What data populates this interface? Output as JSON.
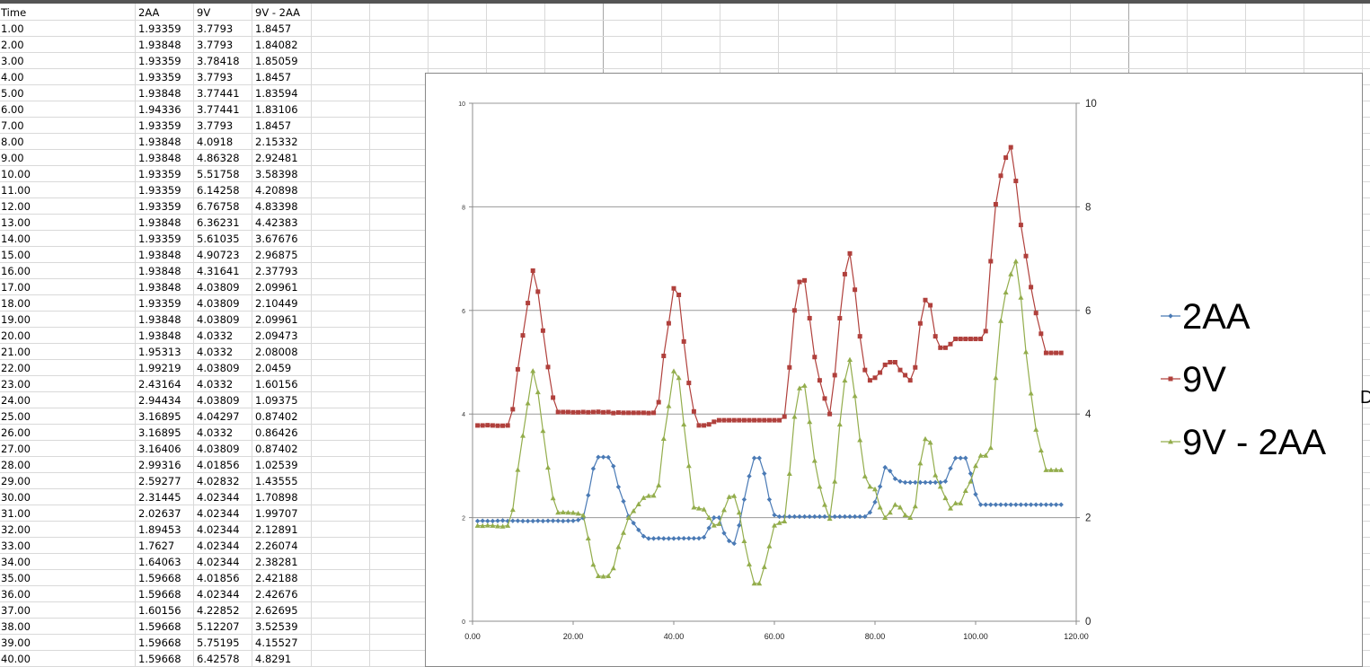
{
  "sheet": {
    "headers": [
      "Time",
      "2AA",
      "9V",
      "9V - 2AA"
    ],
    "rows": [
      [
        "1.00",
        "1.93359",
        "3.7793",
        "1.8457"
      ],
      [
        "2.00",
        "1.93848",
        "3.7793",
        "1.84082"
      ],
      [
        "3.00",
        "1.93359",
        "3.78418",
        "1.85059"
      ],
      [
        "4.00",
        "1.93359",
        "3.7793",
        "1.8457"
      ],
      [
        "5.00",
        "1.93848",
        "3.77441",
        "1.83594"
      ],
      [
        "6.00",
        "1.94336",
        "3.77441",
        "1.83106"
      ],
      [
        "7.00",
        "1.93359",
        "3.7793",
        "1.8457"
      ],
      [
        "8.00",
        "1.93848",
        "4.0918",
        "2.15332"
      ],
      [
        "9.00",
        "1.93848",
        "4.86328",
        "2.92481"
      ],
      [
        "10.00",
        "1.93359",
        "5.51758",
        "3.58398"
      ],
      [
        "11.00",
        "1.93359",
        "6.14258",
        "4.20898"
      ],
      [
        "12.00",
        "1.93359",
        "6.76758",
        "4.83398"
      ],
      [
        "13.00",
        "1.93848",
        "6.36231",
        "4.42383"
      ],
      [
        "14.00",
        "1.93359",
        "5.61035",
        "3.67676"
      ],
      [
        "15.00",
        "1.93848",
        "4.90723",
        "2.96875"
      ],
      [
        "16.00",
        "1.93848",
        "4.31641",
        "2.37793"
      ],
      [
        "17.00",
        "1.93848",
        "4.03809",
        "2.09961"
      ],
      [
        "18.00",
        "1.93359",
        "4.03809",
        "2.10449"
      ],
      [
        "19.00",
        "1.93848",
        "4.03809",
        "2.09961"
      ],
      [
        "20.00",
        "1.93848",
        "4.0332",
        "2.09473"
      ],
      [
        "21.00",
        "1.95313",
        "4.0332",
        "2.08008"
      ],
      [
        "22.00",
        "1.99219",
        "4.03809",
        "2.0459"
      ],
      [
        "23.00",
        "2.43164",
        "4.0332",
        "1.60156"
      ],
      [
        "24.00",
        "2.94434",
        "4.03809",
        "1.09375"
      ],
      [
        "25.00",
        "3.16895",
        "4.04297",
        "0.87402"
      ],
      [
        "26.00",
        "3.16895",
        "4.0332",
        "0.86426"
      ],
      [
        "27.00",
        "3.16406",
        "4.03809",
        "0.87402"
      ],
      [
        "28.00",
        "2.99316",
        "4.01856",
        "1.02539"
      ],
      [
        "29.00",
        "2.59277",
        "4.02832",
        "1.43555"
      ],
      [
        "30.00",
        "2.31445",
        "4.02344",
        "1.70898"
      ],
      [
        "31.00",
        "2.02637",
        "4.02344",
        "1.99707"
      ],
      [
        "32.00",
        "1.89453",
        "4.02344",
        "2.12891"
      ],
      [
        "33.00",
        "1.7627",
        "4.02344",
        "2.26074"
      ],
      [
        "34.00",
        "1.64063",
        "4.02344",
        "2.38281"
      ],
      [
        "35.00",
        "1.59668",
        "4.01856",
        "2.42188"
      ],
      [
        "36.00",
        "1.59668",
        "4.02344",
        "2.42676"
      ],
      [
        "37.00",
        "1.60156",
        "4.22852",
        "2.62695"
      ],
      [
        "38.00",
        "1.59668",
        "5.12207",
        "3.52539"
      ],
      [
        "39.00",
        "1.59668",
        "5.75195",
        "4.15527"
      ],
      [
        "40.00",
        "1.59668",
        "6.42578",
        "4.8291"
      ]
    ]
  },
  "stray_glyph": "D",
  "chart_data": {
    "type": "line",
    "x": [
      1,
      2,
      3,
      4,
      5,
      6,
      7,
      8,
      9,
      10,
      11,
      12,
      13,
      14,
      15,
      16,
      17,
      18,
      19,
      20,
      21,
      22,
      23,
      24,
      25,
      26,
      27,
      28,
      29,
      30,
      31,
      32,
      33,
      34,
      35,
      36,
      37,
      38,
      39,
      40,
      41,
      42,
      43,
      44,
      45,
      46,
      47,
      48,
      49,
      50,
      51,
      52,
      53,
      54,
      55,
      56,
      57,
      58,
      59,
      60,
      61,
      62,
      63,
      64,
      65,
      66,
      67,
      68,
      69,
      70,
      71,
      72,
      73,
      74,
      75,
      76,
      77,
      78,
      79,
      80,
      81,
      82,
      83,
      84,
      85,
      86,
      87,
      88,
      89,
      90,
      91,
      92,
      93,
      94,
      95,
      96,
      97,
      98,
      99,
      100,
      101,
      102,
      103,
      104,
      105,
      106,
      107,
      108,
      109,
      110,
      111,
      112,
      113,
      114,
      115,
      116,
      117
    ],
    "series": [
      {
        "name": "2AA",
        "color": "#4a7ab5",
        "marker": "diamond",
        "values": [
          1.93359,
          1.93848,
          1.93359,
          1.93359,
          1.93848,
          1.94336,
          1.93359,
          1.93848,
          1.93848,
          1.93359,
          1.93359,
          1.93359,
          1.93848,
          1.93359,
          1.93848,
          1.93848,
          1.93848,
          1.93359,
          1.93848,
          1.93848,
          1.95313,
          1.99219,
          2.43164,
          2.94434,
          3.16895,
          3.16895,
          3.16406,
          2.99316,
          2.59277,
          2.31445,
          2.02637,
          1.89453,
          1.7627,
          1.64063,
          1.59668,
          1.59668,
          1.60156,
          1.59668,
          1.59668,
          1.59668,
          1.6,
          1.6,
          1.6,
          1.6,
          1.6,
          1.62,
          1.8,
          2.0,
          2.0,
          1.7,
          1.55,
          1.5,
          1.85,
          2.35,
          2.8,
          3.15,
          3.15,
          2.85,
          2.35,
          2.05,
          2.02,
          2.02,
          2.02,
          2.02,
          2.02,
          2.02,
          2.02,
          2.02,
          2.02,
          2.02,
          2.02,
          2.02,
          2.02,
          2.02,
          2.02,
          2.02,
          2.02,
          2.02,
          2.1,
          2.3,
          2.6,
          2.97,
          2.9,
          2.75,
          2.7,
          2.68,
          2.68,
          2.68,
          2.68,
          2.68,
          2.68,
          2.68,
          2.68,
          2.7,
          2.95,
          3.15,
          3.15,
          3.15,
          2.85,
          2.45,
          2.25,
          2.25,
          2.25,
          2.25,
          2.25,
          2.25,
          2.25,
          2.25,
          2.25,
          2.25,
          2.25,
          2.25,
          2.25,
          2.25,
          2.25,
          2.25,
          2.25
        ]
      },
      {
        "name": "9V",
        "color": "#b0403c",
        "marker": "square",
        "values": [
          3.7793,
          3.7793,
          3.78418,
          3.7793,
          3.77441,
          3.77441,
          3.7793,
          4.0918,
          4.86328,
          5.51758,
          6.14258,
          6.76758,
          6.36231,
          5.61035,
          4.90723,
          4.31641,
          4.03809,
          4.03809,
          4.03809,
          4.0332,
          4.0332,
          4.03809,
          4.0332,
          4.03809,
          4.04297,
          4.0332,
          4.03809,
          4.01856,
          4.02832,
          4.02344,
          4.02344,
          4.02344,
          4.02344,
          4.02344,
          4.01856,
          4.02344,
          4.22852,
          5.12207,
          5.75195,
          6.42578,
          6.3,
          5.4,
          4.6,
          4.05,
          3.78,
          3.78,
          3.8,
          3.85,
          3.88,
          3.88,
          3.88,
          3.88,
          3.88,
          3.88,
          3.88,
          3.88,
          3.88,
          3.88,
          3.88,
          3.88,
          3.88,
          3.95,
          4.9,
          6.0,
          6.55,
          6.58,
          5.85,
          5.1,
          4.65,
          4.3,
          4.0,
          4.75,
          5.85,
          6.7,
          7.1,
          6.4,
          5.5,
          4.85,
          4.65,
          4.7,
          4.8,
          4.95,
          5.0,
          5.0,
          4.85,
          4.75,
          4.65,
          4.9,
          5.75,
          6.2,
          6.1,
          5.5,
          5.28,
          5.28,
          5.35,
          5.45,
          5.45,
          5.45,
          5.45,
          5.45,
          5.45,
          5.6,
          6.95,
          8.05,
          8.6,
          8.95,
          9.15,
          8.5,
          7.65,
          7.05,
          6.45,
          5.95,
          5.55,
          5.18,
          5.18,
          5.18,
          5.18
        ]
      },
      {
        "name": "9V - 2AA",
        "color": "#93ad4c",
        "marker": "triangle",
        "values": [
          1.8457,
          1.84082,
          1.85059,
          1.8457,
          1.83594,
          1.83106,
          1.8457,
          2.15332,
          2.92481,
          3.58398,
          4.20898,
          4.83398,
          4.42383,
          3.67676,
          2.96875,
          2.37793,
          2.09961,
          2.10449,
          2.09961,
          2.09473,
          2.08008,
          2.0459,
          1.60156,
          1.09375,
          0.87402,
          0.86426,
          0.87402,
          1.02539,
          1.43555,
          1.70898,
          1.99707,
          2.12891,
          2.26074,
          2.38281,
          2.42188,
          2.42676,
          2.62695,
          3.52539,
          4.15527,
          4.8291,
          4.7,
          3.8,
          3.0,
          2.2,
          2.18,
          2.16,
          2.0,
          1.85,
          1.88,
          2.15,
          2.4,
          2.42,
          2.1,
          1.55,
          1.1,
          0.73,
          0.73,
          1.05,
          1.45,
          1.85,
          1.9,
          1.93,
          2.85,
          3.95,
          4.5,
          4.55,
          3.85,
          3.1,
          2.6,
          2.25,
          1.98,
          2.7,
          3.8,
          4.65,
          5.05,
          4.35,
          3.5,
          2.8,
          2.6,
          2.55,
          2.2,
          2.0,
          2.1,
          2.25,
          2.2,
          2.05,
          2.0,
          2.22,
          3.05,
          3.52,
          3.45,
          2.82,
          2.6,
          2.38,
          2.18,
          2.28,
          2.28,
          2.52,
          2.7,
          3.0,
          3.2,
          3.2,
          3.35,
          4.7,
          5.8,
          6.35,
          6.7,
          6.95,
          6.25,
          5.2,
          4.4,
          3.7,
          3.3,
          2.92,
          2.92,
          2.92,
          2.92
        ]
      }
    ],
    "x_ticks": [
      "0.00",
      "20.00",
      "40.00",
      "60.00",
      "80.00",
      "100.00",
      "120.00"
    ],
    "y_ticks": [
      "0",
      "2",
      "4",
      "6",
      "8",
      "10"
    ],
    "y2_ticks": [
      "0",
      "2",
      "4",
      "6",
      "8",
      "10"
    ],
    "xlim": [
      0,
      120
    ],
    "ylim": [
      0,
      10
    ],
    "gridlines": "horizontal",
    "legend_position": "right",
    "title": "",
    "xlabel": "",
    "ylabel": ""
  }
}
